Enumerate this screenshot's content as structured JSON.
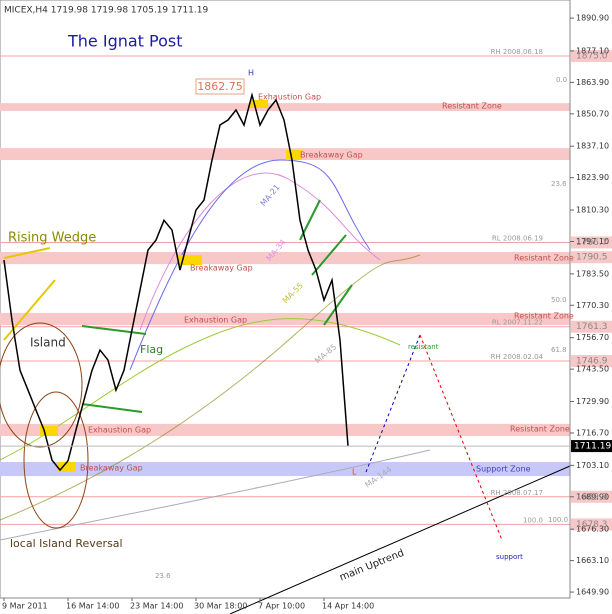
{
  "chart_data": {
    "type": "line",
    "header": "MICEX,H4  1719.98 1719.98 1705.19 1711.19",
    "title": "The Ignat Post",
    "categories": [
      "9 Mar 2011",
      null,
      null,
      null,
      null,
      null,
      null,
      null,
      "16 Mar 14:00",
      null,
      null,
      null,
      null,
      null,
      null,
      null,
      "23 Mar 14:00",
      null,
      null,
      null,
      null,
      null,
      null,
      null,
      "30 Mar 18:00",
      null,
      null,
      null,
      null,
      null,
      null,
      null,
      "7 Apr 10:00",
      null,
      null,
      null,
      null,
      null,
      null,
      null,
      "14 Apr 14:00",
      null,
      null,
      null
    ],
    "series": [
      {
        "name": "MICEX",
        "color": "#000000",
        "values": [
          1789.3,
          1764,
          1743,
          1734.7,
          1726.3,
          1718,
          1705.3,
          1701.1,
          1705,
          1718,
          1730.5,
          1743,
          1751.5,
          1747.3,
          1734.7,
          1743,
          1760,
          1776.7,
          1793.5,
          1797.7,
          1806,
          1801.9,
          1785.1,
          1797.7,
          1810.3,
          1814.5,
          1831.3,
          1846,
          1848.1,
          1852.3,
          1846,
          1858.6,
          1846,
          1852.3,
          1856.5,
          1848.1,
          1831.3,
          1806,
          1793.5,
          1785.1,
          1772.5,
          1780.9,
          1755.7,
          1711.19
        ]
      }
    ],
    "current": {
      "value": 1711.19,
      "label": "1711.19"
    },
    "ylim": [
      1647.4,
      1898.5
    ],
    "yticks": [
      {
        "value": 1890.9,
        "label": "1890.90"
      },
      {
        "value": 1877.1,
        "label": "1877.10"
      },
      {
        "value": 1863.9,
        "label": "1863.90"
      },
      {
        "value": 1850.7,
        "label": "1850.70"
      },
      {
        "value": 1837.1,
        "label": "1837.10"
      },
      {
        "value": 1823.9,
        "label": "1823.90"
      },
      {
        "value": 1810.3,
        "label": "1810.30"
      },
      {
        "value": 1797.1,
        "label": "1797.10"
      },
      {
        "value": 1783.5,
        "label": "1783.50"
      },
      {
        "value": 1770.3,
        "label": "1770.30"
      },
      {
        "value": 1756.7,
        "label": "1756.70"
      },
      {
        "value": 1743.5,
        "label": "1743.50"
      },
      {
        "value": 1729.9,
        "label": "1729.90"
      },
      {
        "value": 1716.7,
        "label": "1716.70"
      },
      {
        "value": 1703.1,
        "label": "1703.10"
      },
      {
        "value": 1689.9,
        "label": "1689.90"
      },
      {
        "value": 1676.3,
        "label": "1676.30"
      },
      {
        "value": 1663.1,
        "label": "1663.10"
      },
      {
        "value": 1649.9,
        "label": "1649.90"
      }
    ],
    "levels": [
      {
        "value": 1875.0,
        "label": "1875.0",
        "note": "RH 2008.06.18"
      },
      {
        "value": 1796.7,
        "label": "1796.7",
        "note": "RL 2008.06.19"
      },
      {
        "value": 1761.3,
        "label": "1761.3",
        "note": "RL 2007.11.22"
      },
      {
        "value": 1746.9,
        "label": "1746.9",
        "note": "RH 2008.02.04"
      },
      {
        "value": 1689.9,
        "label": "1689.9",
        "note": "RH 2008.07.17"
      },
      {
        "value": 1678.3,
        "label": "1678.3",
        "note": "100.0"
      }
    ],
    "zones": [
      {
        "from": 1851.9,
        "to": 1855.2,
        "color": "#f8c8c8",
        "labels": [
          "Resistant Zone"
        ]
      },
      {
        "from": 1831.3,
        "to": 1836.3,
        "color": "#f8c8c8",
        "labels": [
          "Breakaway Gap"
        ]
      },
      {
        "from": 1787.6,
        "to": 1792.7,
        "color": "#f8c8c8",
        "labels": [
          "Resistant Zone"
        ],
        "axis": {
          "value": 1790.5,
          "label": "1790.5"
        }
      },
      {
        "from": 1762.0,
        "to": 1767.1,
        "color": "#f8c8c8",
        "labels": [
          "Exhaustion Gap",
          "Resistant Zone"
        ]
      },
      {
        "from": 1715.4,
        "to": 1720.5,
        "color": "#f8c8c8",
        "labels": [
          "Exhaustion Gap",
          "Resistant Zone"
        ]
      },
      {
        "from": 1698.6,
        "to": 1704.5,
        "color": "#c8c8f8",
        "labels": [
          "Support Zone"
        ]
      }
    ],
    "annotations": [
      "Rising Wedge",
      "Island",
      "Flag",
      "local Island Reversal",
      "main Uptrend",
      "resistant",
      "support",
      "1862.75",
      "H",
      "L",
      "MA-21",
      "MA-34",
      "MA-55",
      "MA-85",
      "MA-144",
      "Exhaustion Gap",
      "Breakaway Gap",
      "Breakaway Gap",
      "0.0",
      "23.6",
      "50.0",
      "61.8",
      "100.0",
      "23.6"
    ]
  }
}
